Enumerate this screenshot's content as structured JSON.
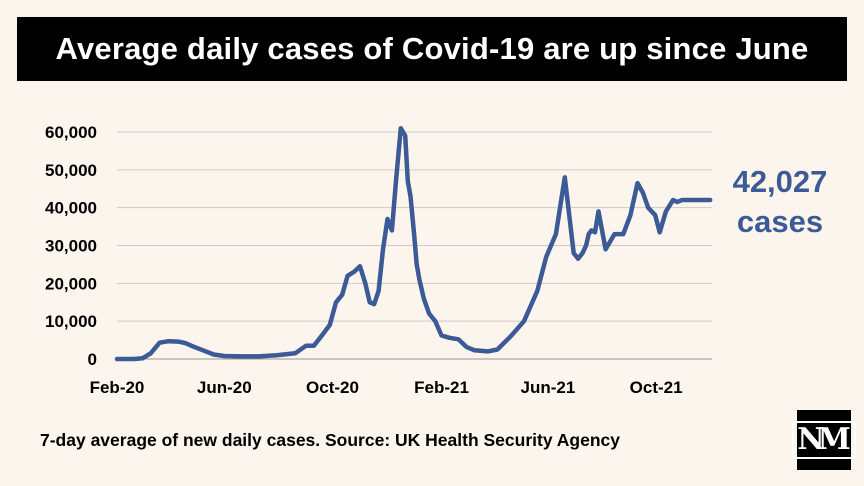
{
  "title": "Average daily cases of Covid-19 are up since June",
  "footnote": "7-day average of new daily cases. Source: UK Health Security Agency",
  "logo_text": "NM",
  "callout": {
    "value": "42,027",
    "unit": "cases"
  },
  "colors": {
    "line": "#3b5a96",
    "grid": "#cfcac5",
    "background": "#fcf5ee",
    "title_bg": "#000000"
  },
  "chart_data": {
    "type": "line",
    "title": "Average daily cases of Covid-19 are up since June",
    "xlabel": "",
    "ylabel": "",
    "x_tick_labels": [
      "Feb-20",
      "Jun-20",
      "Oct-20",
      "Feb-21",
      "Jun-21",
      "Oct-21"
    ],
    "y_tick_labels": [
      "0",
      "10,000",
      "20,000",
      "30,000",
      "40,000",
      "50,000",
      "60,000"
    ],
    "ylim": [
      0,
      60000
    ],
    "grid": "horizontal",
    "series": [
      {
        "name": "",
        "x": [
          "2020-02-01",
          "2020-02-20",
          "2020-03-01",
          "2020-03-10",
          "2020-03-20",
          "2020-03-30",
          "2020-04-10",
          "2020-04-18",
          "2020-04-28",
          "2020-05-08",
          "2020-05-20",
          "2020-06-01",
          "2020-06-20",
          "2020-07-10",
          "2020-07-30",
          "2020-08-20",
          "2020-09-01",
          "2020-09-10",
          "2020-09-20",
          "2020-09-28",
          "2020-10-05",
          "2020-10-12",
          "2020-10-18",
          "2020-10-25",
          "2020-11-01",
          "2020-11-07",
          "2020-11-12",
          "2020-11-17",
          "2020-11-22",
          "2020-11-27",
          "2020-12-02",
          "2020-12-07",
          "2020-12-12",
          "2020-12-17",
          "2020-12-22",
          "2020-12-25",
          "2020-12-28",
          "2021-01-01",
          "2021-01-04",
          "2021-01-07",
          "2021-01-12",
          "2021-01-18",
          "2021-01-25",
          "2021-02-01",
          "2021-02-10",
          "2021-02-20",
          "2021-03-01",
          "2021-03-10",
          "2021-03-25",
          "2021-04-05",
          "2021-04-20",
          "2021-05-05",
          "2021-05-20",
          "2021-05-30",
          "2021-06-10",
          "2021-06-20",
          "2021-06-30",
          "2021-07-05",
          "2021-07-10",
          "2021-07-14",
          "2021-07-17",
          "2021-07-20",
          "2021-07-24",
          "2021-07-28",
          "2021-08-05",
          "2021-08-15",
          "2021-08-25",
          "2021-09-02",
          "2021-09-10",
          "2021-09-16",
          "2021-09-22",
          "2021-09-30",
          "2021-10-05",
          "2021-10-12",
          "2021-10-20",
          "2021-10-25",
          "2021-10-30",
          "2021-11-05",
          "2021-11-10",
          "2021-11-18",
          "2021-11-25",
          "2021-12-01"
        ],
        "y": [
          0,
          0,
          200,
          1500,
          4300,
          4700,
          4600,
          4200,
          3200,
          2300,
          1200,
          800,
          700,
          700,
          1000,
          1500,
          3500,
          3500,
          6500,
          9000,
          15000,
          17000,
          22000,
          23000,
          24500,
          20000,
          15000,
          14500,
          18000,
          29000,
          37000,
          34000,
          48000,
          61000,
          59000,
          47000,
          43000,
          33000,
          25000,
          21000,
          16000,
          12000,
          10000,
          6200,
          5600,
          5200,
          3200,
          2300,
          2000,
          2500,
          6000,
          10000,
          18000,
          27000,
          33000,
          48000,
          28000,
          26500,
          28000,
          30000,
          33000,
          34000,
          33500,
          39000,
          29000,
          33000,
          33000,
          38000,
          46500,
          44000,
          40000,
          38000,
          33500,
          39000,
          42000,
          41500,
          42027,
          42027,
          42027,
          42027,
          42027,
          42027
        ]
      }
    ]
  }
}
